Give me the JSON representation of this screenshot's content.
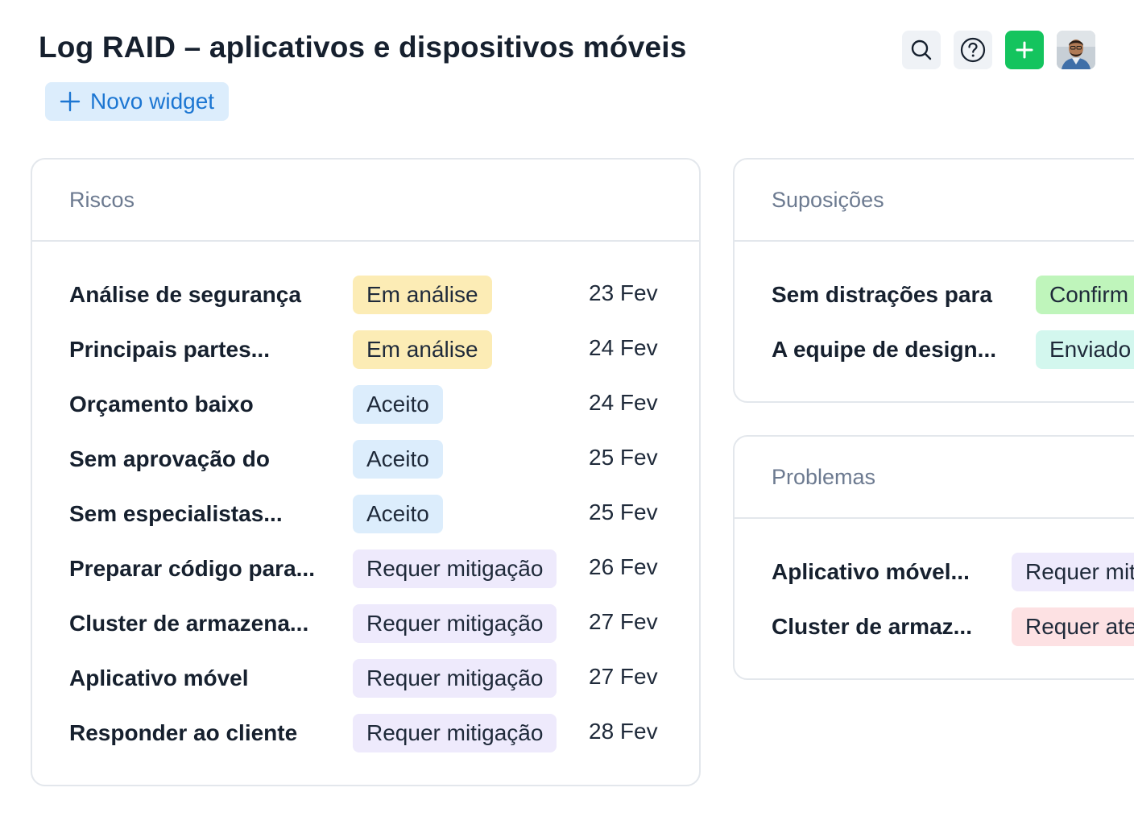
{
  "header": {
    "title": "Log RAID – aplicativos e dispositivos móveis",
    "new_widget_label": "Novo widget"
  },
  "actions": {
    "search_icon": "search-icon",
    "help_icon": "help-icon",
    "add_icon": "plus-icon",
    "avatar": "user-avatar"
  },
  "colors": {
    "accent": "#1c76d2",
    "add_button": "#14c45e",
    "status_review": "#fcecb5",
    "status_accepted": "#dcedfc",
    "status_mitigation": "#eeeafc",
    "status_confirmed": "#bff5bb",
    "status_sent": "#d3f7ee",
    "status_attention": "#fde1e3"
  },
  "risks": {
    "title": "Riscos",
    "rows": [
      {
        "title": "Análise de segurança",
        "status": "Em análise",
        "date": "23 Fev"
      },
      {
        "title": "Principais partes...",
        "status": "Em análise",
        "date": "24 Fev"
      },
      {
        "title": "Orçamento baixo",
        "status": "Aceito",
        "date": "24 Fev"
      },
      {
        "title": "Sem aprovação do",
        "status": "Aceito",
        "date": "25 Fev"
      },
      {
        "title": "Sem especialistas...",
        "status": "Aceito",
        "date": "25 Fev"
      },
      {
        "title": "Preparar código para...",
        "status": "Requer mitigação",
        "date": "26 Fev"
      },
      {
        "title": "Cluster de armazena...",
        "status": "Requer mitigação",
        "date": "27 Fev"
      },
      {
        "title": "Aplicativo móvel",
        "status": "Requer mitigação",
        "date": "27 Fev"
      },
      {
        "title": "Responder ao cliente",
        "status": "Requer mitigação",
        "date": "28 Fev"
      }
    ]
  },
  "assumptions": {
    "title": "Suposições",
    "rows": [
      {
        "title": "Sem distrações para",
        "status": "Confirm"
      },
      {
        "title": "A equipe de design...",
        "status": "Enviado"
      }
    ]
  },
  "issues": {
    "title": "Problemas",
    "rows": [
      {
        "title": "Aplicativo móvel...",
        "status": "Requer mit"
      },
      {
        "title": "Cluster de armaz...",
        "status": "Requer ate"
      }
    ]
  }
}
